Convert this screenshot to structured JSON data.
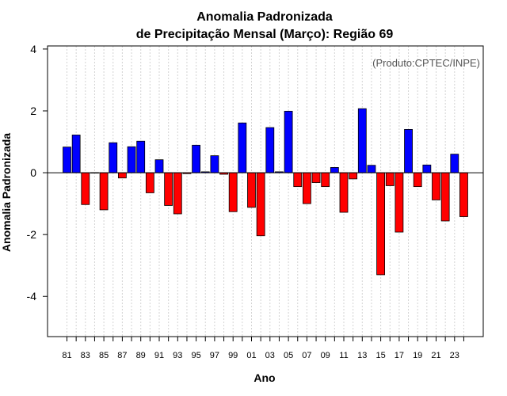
{
  "chart_data": {
    "type": "bar",
    "title_line1": "Anomalia Padronizada",
    "title_line2": "de Precipitação Mensal (Março): Região 69",
    "xlabel": "Ano",
    "ylabel": "Anomalia Padronizada",
    "credit": "(Produto:CPTEC/INPE)",
    "ylim": [
      -5.3,
      4.1
    ],
    "yticks": [
      "4",
      "2",
      "0",
      "-2",
      "-4"
    ],
    "ytick_values": [
      4,
      2,
      0,
      -2,
      -4
    ],
    "xtick_labels": [
      "81",
      "83",
      "85",
      "87",
      "89",
      "91",
      "93",
      "95",
      "97",
      "99",
      "01",
      "03",
      "05",
      "07",
      "09",
      "11",
      "13",
      "15",
      "17",
      "19",
      "21",
      "23"
    ],
    "categories": [
      "1981",
      "1982",
      "1983",
      "1984",
      "1985",
      "1986",
      "1987",
      "1988",
      "1989",
      "1990",
      "1991",
      "1992",
      "1993",
      "1994",
      "1995",
      "1996",
      "1997",
      "1998",
      "1999",
      "2000",
      "2001",
      "2002",
      "2003",
      "2004",
      "2005",
      "2006",
      "2007",
      "2008",
      "2009",
      "2010",
      "2011",
      "2012",
      "2013",
      "2014",
      "2015",
      "2016",
      "2017",
      "2018",
      "2019",
      "2020",
      "2021",
      "2022",
      "2023",
      "2024"
    ],
    "values": [
      0.83,
      1.22,
      -1.03,
      0.0,
      -1.2,
      0.97,
      -0.17,
      0.84,
      1.02,
      -0.65,
      0.42,
      -1.06,
      -1.33,
      -0.03,
      0.89,
      0.03,
      0.55,
      -0.05,
      -1.26,
      1.61,
      -1.12,
      -2.04,
      1.46,
      0.03,
      1.99,
      -0.45,
      -1.0,
      -0.32,
      -0.45,
      0.17,
      -1.28,
      -0.2,
      2.07,
      0.24,
      -3.3,
      -0.42,
      -1.92,
      1.4,
      -0.45,
      0.25,
      -0.88,
      -1.56,
      0.6,
      -1.42
    ],
    "positive_color": "#0000ff",
    "negative_color": "#ff0000"
  }
}
